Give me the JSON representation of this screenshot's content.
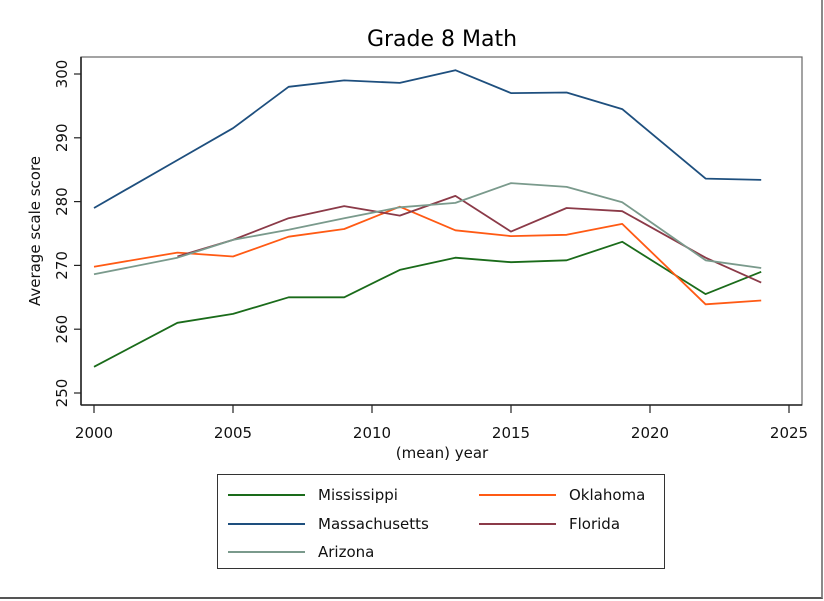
{
  "chart_data": {
    "type": "line",
    "title": "Grade 8 Math",
    "xlabel": "(mean) year",
    "ylabel": "Average scale score",
    "xlim": [
      2000,
      2025
    ],
    "ylim": [
      250,
      300
    ],
    "xticks": [
      2000,
      2005,
      2010,
      2015,
      2020,
      2025
    ],
    "yticks": [
      250,
      260,
      270,
      280,
      290,
      300
    ],
    "grid": false,
    "legend_position": "bottom",
    "series": [
      {
        "name": "Mississippi",
        "color": "#1a6b1a",
        "x": [
          2000,
          2003,
          2005,
          2007,
          2009,
          2011,
          2013,
          2015,
          2017,
          2019,
          2022,
          2024
        ],
        "values": [
          254.1,
          261.0,
          262.4,
          265.0,
          265.0,
          269.3,
          271.2,
          270.5,
          270.8,
          273.7,
          265.5,
          269.0
        ]
      },
      {
        "name": "Oklahoma",
        "color": "#ff5a14",
        "x": [
          2000,
          2003,
          2005,
          2007,
          2009,
          2011,
          2013,
          2015,
          2017,
          2019,
          2022,
          2024
        ],
        "values": [
          269.8,
          272.0,
          271.4,
          274.5,
          275.7,
          279.2,
          275.5,
          274.6,
          274.8,
          276.5,
          263.9,
          264.5
        ]
      },
      {
        "name": "Massachusetts",
        "color": "#1e4f7e",
        "x": [
          2000,
          2003,
          2005,
          2007,
          2009,
          2011,
          2013,
          2015,
          2017,
          2019,
          2022,
          2024
        ],
        "values": [
          279.0,
          286.5,
          291.5,
          298.0,
          299.0,
          298.6,
          300.6,
          297.0,
          297.1,
          294.5,
          283.6,
          283.4
        ]
      },
      {
        "name": "Florida",
        "color": "#8b3a48",
        "x": [
          2003,
          2005,
          2007,
          2009,
          2011,
          2013,
          2015,
          2017,
          2019,
          2022,
          2024
        ],
        "values": [
          271.4,
          274.0,
          277.4,
          279.3,
          277.8,
          280.9,
          275.3,
          279.0,
          278.5,
          271.2,
          267.3
        ]
      },
      {
        "name": "Arizona",
        "color": "#7a9a8c",
        "x": [
          2000,
          2003,
          2005,
          2007,
          2009,
          2011,
          2013,
          2015,
          2017,
          2019,
          2022,
          2024
        ],
        "values": [
          268.6,
          271.2,
          274.0,
          275.6,
          277.4,
          279.1,
          279.8,
          282.9,
          282.3,
          279.9,
          270.8,
          269.6
        ]
      }
    ]
  },
  "legend": {
    "items": [
      {
        "label": "Mississippi",
        "color": "#1a6b1a"
      },
      {
        "label": "Oklahoma",
        "color": "#ff5a14"
      },
      {
        "label": "Massachusetts",
        "color": "#1e4f7e"
      },
      {
        "label": "Florida",
        "color": "#8b3a48"
      },
      {
        "label": "Arizona",
        "color": "#7a9a8c"
      }
    ]
  }
}
